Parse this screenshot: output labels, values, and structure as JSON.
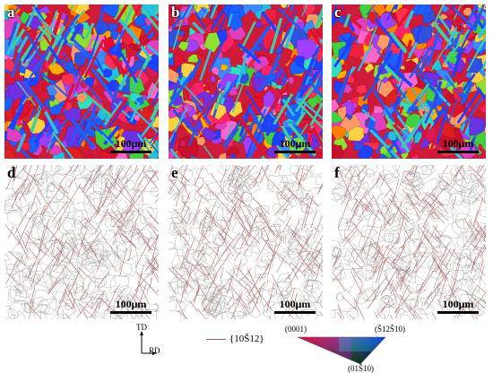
{
  "panels": [
    {
      "label": "a",
      "kind": "ebsd",
      "scale": "100μm"
    },
    {
      "label": "b",
      "kind": "ebsd",
      "scale": "100μm"
    },
    {
      "label": "c",
      "kind": "ebsd",
      "scale": "100μm"
    },
    {
      "label": "d",
      "kind": "boundary",
      "scale": "100μm"
    },
    {
      "label": "e",
      "kind": "boundary",
      "scale": "100μm"
    },
    {
      "label": "f",
      "kind": "boundary",
      "scale": "100μm"
    }
  ],
  "legend": {
    "axis_td": "TD",
    "axis_rd": "RD",
    "twin_label": "{10Š12}",
    "ipf_0001": "(0001)",
    "ipf_12_10": "(Š12Š10)",
    "ipf_01_10": "(01Š10)"
  },
  "colors": {
    "boundary_line": "#b06a6a",
    "grain_line": "#9a9a9a"
  }
}
